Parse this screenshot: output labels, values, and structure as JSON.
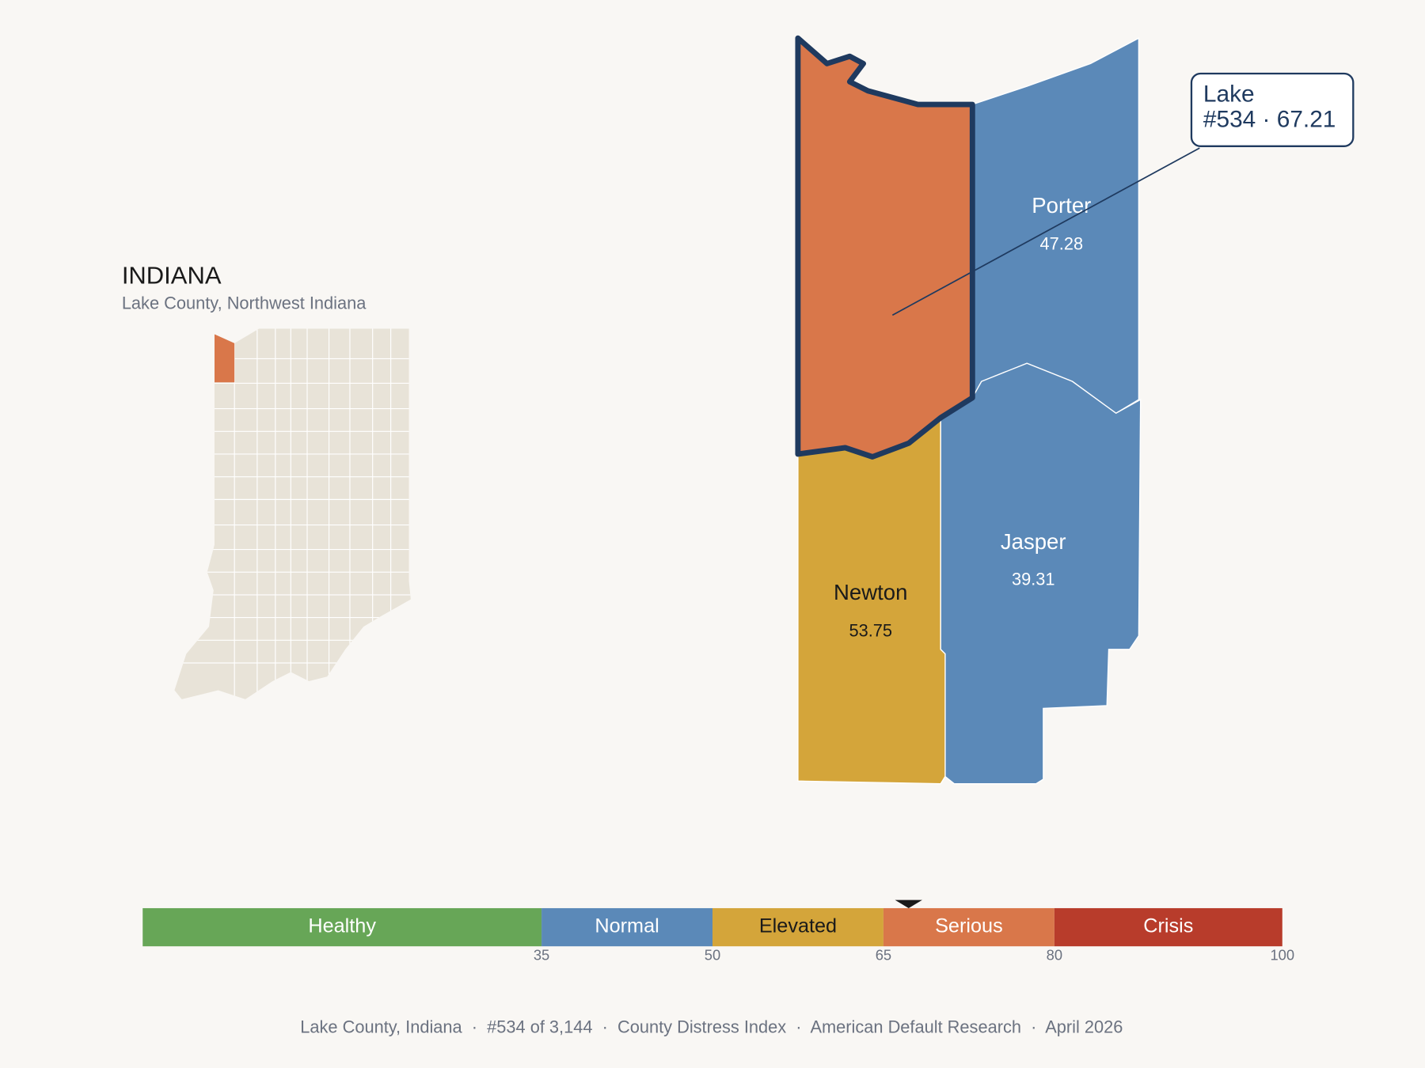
{
  "header": {
    "title": "INDIANA",
    "subtitle": "Lake County, Northwest Indiana"
  },
  "counties": [
    {
      "name": "Porter",
      "value": 47.28
    },
    {
      "name": "Jasper",
      "value": 39.31
    },
    {
      "name": "Newton",
      "value": 53.75
    },
    {
      "name": "Lake",
      "value": 67.21
    }
  ],
  "callout": {
    "title": "Lake",
    "detail": "#534 · 67.21"
  },
  "scale": {
    "lim": [
      0,
      100
    ],
    "ticks": [
      35,
      50,
      65,
      80,
      100
    ],
    "segments": [
      {
        "name": "Healthy",
        "color": "#67a657",
        "text_color": "#ffffff"
      },
      {
        "name": "Normal",
        "color": "#5b89b8",
        "text_color": "#ffffff"
      },
      {
        "name": "Elevated",
        "color": "#d4a53a",
        "text_color": "#1a1a1a"
      },
      {
        "name": "Serious",
        "color": "#d9774a",
        "text_color": "#ffffff"
      },
      {
        "name": "Crisis",
        "color": "#b83c2b",
        "text_color": "#ffffff"
      }
    ]
  },
  "footer": "Lake County, Indiana  ·  #534 of 3,144  ·  County Distress Index  ·  American Default Research  ·  April 2026"
}
